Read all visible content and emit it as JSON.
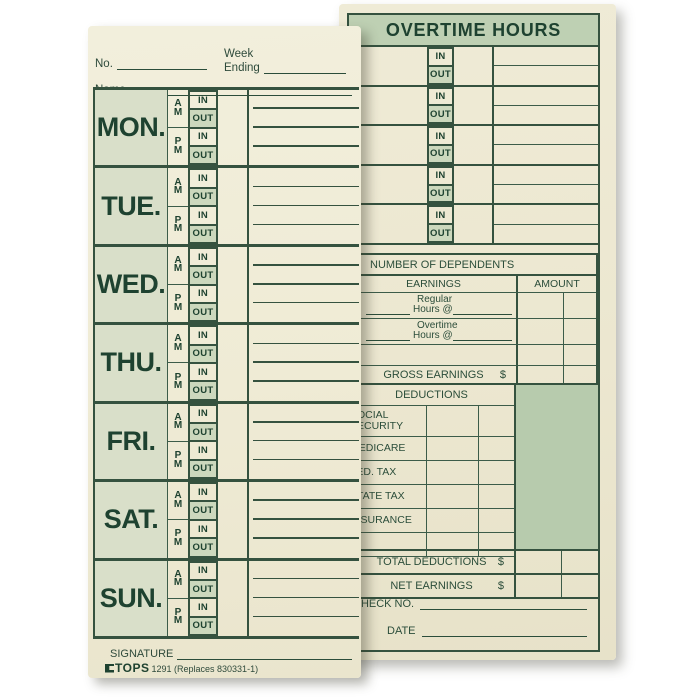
{
  "colors": {
    "ink": "#2b4d3a",
    "card_cream": "#efebd5",
    "day_column_green": "#d9dfc9",
    "out_cell_green": "#ccd8bd",
    "header_band_green": "#bed0b3",
    "shaded_panel_green": "#b7cbad"
  },
  "left_card": {
    "no_label": "No.",
    "week_label": "Week",
    "ending_label": "Ending",
    "name_label": "Name",
    "days": [
      "MON.",
      "TUE.",
      "WED.",
      "THU.",
      "FRI.",
      "SAT.",
      "SUN."
    ],
    "am": [
      "A",
      "M"
    ],
    "pm": [
      "P",
      "M"
    ],
    "in_label": "IN",
    "out_label": "OUT",
    "signature_label": "SIGNATURE",
    "brand": "TOPS",
    "product_code": "1291",
    "replaces_note": "(Replaces 830331-1)"
  },
  "right_card": {
    "title": "OVERTIME HOURS",
    "overtime_rows": [
      {
        "in": "IN",
        "out": "OUT"
      },
      {
        "in": "IN",
        "out": "OUT"
      },
      {
        "in": "IN",
        "out": "OUT"
      },
      {
        "in": "IN",
        "out": "OUT"
      },
      {
        "in": "IN",
        "out": "OUT"
      }
    ],
    "dependents_label": "NUMBER OF DEPENDENTS",
    "earnings": {
      "header": "EARNINGS",
      "amount_header": "AMOUNT",
      "rows": [
        {
          "type_label": "Regular",
          "rate_label": "Hours @"
        },
        {
          "type_label": "Overtime",
          "rate_label": "Hours @"
        }
      ],
      "gross_label": "GROSS EARNINGS",
      "currency": "$"
    },
    "deductions": {
      "header": "DEDUCTIONS",
      "items": [
        "SOCIAL\nSECURITY",
        "MEDICARE",
        "FED. TAX",
        "STATE TAX",
        "INSURANCE",
        ""
      ]
    },
    "total_deductions_label": "TOTAL DEDUCTIONS",
    "net_earnings_label": "NET EARNINGS",
    "currency": "$",
    "check_no_label": "CHECK NO.",
    "date_label": "DATE"
  }
}
